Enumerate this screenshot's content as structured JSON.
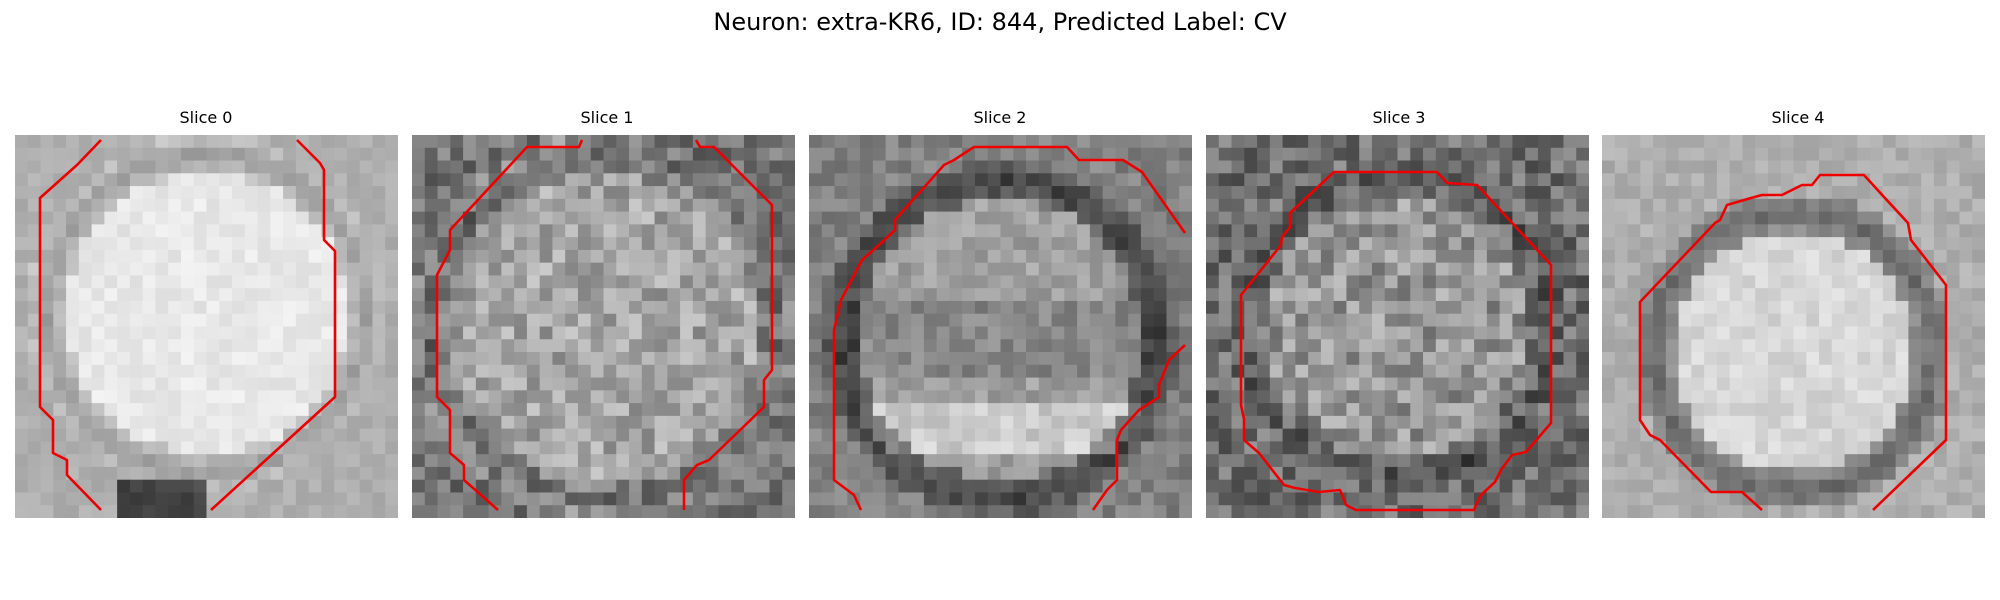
{
  "figure": {
    "title": "Neuron: extra-KR6, ID: 844, Predicted Label: CV"
  },
  "panels": [
    {
      "title": "Slice 0"
    },
    {
      "title": "Slice 1"
    },
    {
      "title": "Slice 2"
    },
    {
      "title": "Slice 3"
    },
    {
      "title": "Slice 4"
    }
  ],
  "colors": {
    "contour": "#ee0000",
    "background": "#ffffff"
  }
}
